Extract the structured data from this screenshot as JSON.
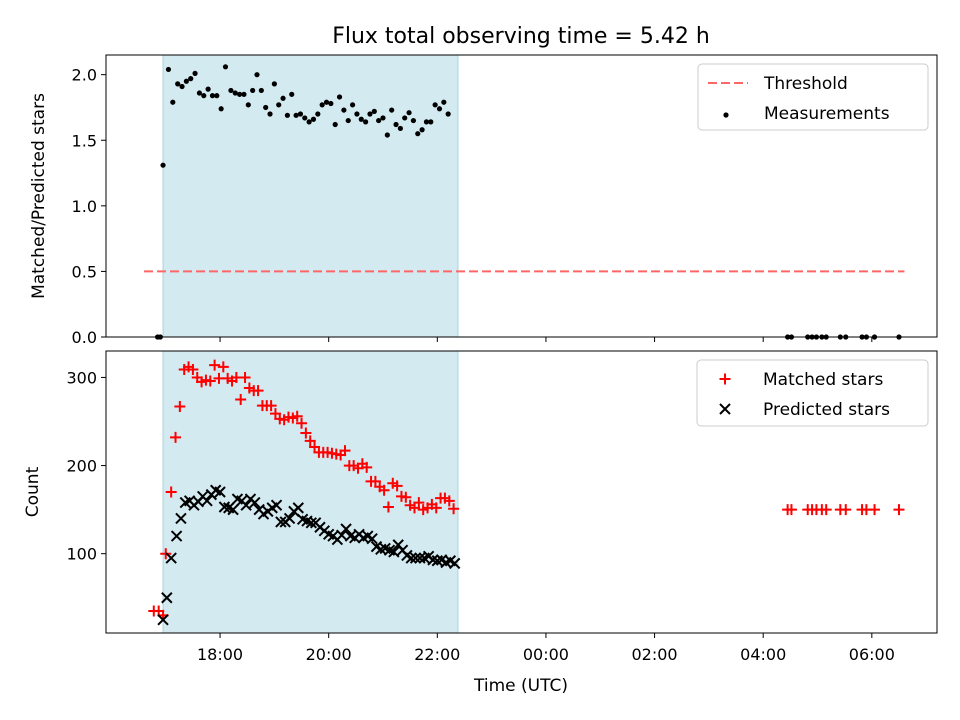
{
  "chart_data": {
    "title": "Flux total observing time = 5.42 h",
    "xlabel": "Time (UTC)",
    "x_hours_range": [
      15.9,
      31.2
    ],
    "x_ticks": [
      {
        "h": 18,
        "label": "18:00"
      },
      {
        "h": 20,
        "label": "20:00"
      },
      {
        "h": 22,
        "label": "22:00"
      },
      {
        "h": 24,
        "label": "00:00"
      },
      {
        "h": 26,
        "label": "02:00"
      },
      {
        "h": 28,
        "label": "04:00"
      },
      {
        "h": 30,
        "label": "06:00"
      }
    ],
    "observing_window": [
      16.95,
      22.38
    ],
    "window_color": "#d4eaf1",
    "panels": [
      {
        "type": "scatter",
        "ylabel": "Matched/Predicted stars",
        "ylim": [
          0,
          2.15
        ],
        "yticks": [
          0.0,
          0.5,
          1.0,
          1.5,
          2.0
        ],
        "ytick_labels": [
          "0.0",
          "0.5",
          "1.0",
          "1.5",
          "2.0"
        ],
        "threshold": {
          "name": "Threshold",
          "value": 0.5,
          "x_range": [
            16.6,
            30.6
          ],
          "color": "#ff6666"
        },
        "series": [
          {
            "name": "Measurements",
            "marker": "dot",
            "color": "#000000",
            "points": [
              [
                16.85,
                0
              ],
              [
                16.9,
                0
              ],
              [
                16.95,
                1.31
              ],
              [
                17.05,
                2.04
              ],
              [
                17.13,
                1.79
              ],
              [
                17.22,
                1.93
              ],
              [
                17.3,
                1.91
              ],
              [
                17.38,
                1.95
              ],
              [
                17.46,
                1.97
              ],
              [
                17.54,
                2.01
              ],
              [
                17.62,
                1.86
              ],
              [
                17.7,
                1.84
              ],
              [
                17.78,
                1.89
              ],
              [
                17.86,
                1.84
              ],
              [
                17.94,
                1.84
              ],
              [
                18.02,
                1.74
              ],
              [
                18.1,
                2.06
              ],
              [
                18.2,
                1.88
              ],
              [
                18.28,
                1.86
              ],
              [
                18.36,
                1.85
              ],
              [
                18.44,
                1.85
              ],
              [
                18.52,
                1.77
              ],
              [
                18.6,
                1.88
              ],
              [
                18.68,
                2.0
              ],
              [
                18.76,
                1.88
              ],
              [
                18.84,
                1.75
              ],
              [
                18.92,
                1.7
              ],
              [
                19.0,
                1.93
              ],
              [
                19.08,
                1.77
              ],
              [
                19.16,
                1.82
              ],
              [
                19.24,
                1.69
              ],
              [
                19.32,
                1.85
              ],
              [
                19.4,
                1.69
              ],
              [
                19.48,
                1.7
              ],
              [
                19.56,
                1.67
              ],
              [
                19.64,
                1.64
              ],
              [
                19.72,
                1.66
              ],
              [
                19.8,
                1.7
              ],
              [
                19.88,
                1.77
              ],
              [
                19.96,
                1.79
              ],
              [
                20.04,
                1.78
              ],
              [
                20.12,
                1.62
              ],
              [
                20.2,
                1.83
              ],
              [
                20.28,
                1.73
              ],
              [
                20.36,
                1.65
              ],
              [
                20.44,
                1.77
              ],
              [
                20.52,
                1.7
              ],
              [
                20.6,
                1.66
              ],
              [
                20.68,
                1.64
              ],
              [
                20.76,
                1.7
              ],
              [
                20.84,
                1.72
              ],
              [
                20.92,
                1.65
              ],
              [
                21.0,
                1.67
              ],
              [
                21.08,
                1.54
              ],
              [
                21.16,
                1.73
              ],
              [
                21.24,
                1.62
              ],
              [
                21.32,
                1.59
              ],
              [
                21.4,
                1.67
              ],
              [
                21.48,
                1.71
              ],
              [
                21.56,
                1.65
              ],
              [
                21.64,
                1.55
              ],
              [
                21.72,
                1.58
              ],
              [
                21.8,
                1.64
              ],
              [
                21.88,
                1.64
              ],
              [
                21.96,
                1.77
              ],
              [
                22.04,
                1.74
              ],
              [
                22.12,
                1.79
              ],
              [
                22.2,
                1.7
              ],
              [
                28.45,
                0
              ],
              [
                28.52,
                0
              ],
              [
                28.82,
                0
              ],
              [
                28.9,
                0
              ],
              [
                28.98,
                0
              ],
              [
                29.08,
                0
              ],
              [
                29.16,
                0
              ],
              [
                29.42,
                0
              ],
              [
                29.52,
                0
              ],
              [
                29.82,
                0
              ],
              [
                29.9,
                0
              ],
              [
                30.05,
                0
              ],
              [
                30.5,
                0
              ]
            ]
          }
        ],
        "legend": [
          "Threshold",
          "Measurements"
        ],
        "legend_position": "top-right"
      },
      {
        "type": "scatter",
        "ylabel": "Count",
        "ylim": [
          10,
          330
        ],
        "yticks": [
          100,
          200,
          300
        ],
        "ytick_labels": [
          "100",
          "200",
          "300"
        ],
        "series": [
          {
            "name": "Matched stars",
            "marker": "plus",
            "color": "#ff0000",
            "points": [
              [
                16.78,
                35
              ],
              [
                16.87,
                35
              ],
              [
                16.95,
                30
              ],
              [
                17.0,
                100
              ],
              [
                17.1,
                170
              ],
              [
                17.18,
                232
              ],
              [
                17.26,
                267
              ],
              [
                17.34,
                309
              ],
              [
                17.42,
                312
              ],
              [
                17.5,
                309
              ],
              [
                17.58,
                300
              ],
              [
                17.66,
                295
              ],
              [
                17.74,
                297
              ],
              [
                17.82,
                296
              ],
              [
                17.9,
                314
              ],
              [
                17.98,
                299
              ],
              [
                18.06,
                312
              ],
              [
                18.14,
                299
              ],
              [
                18.22,
                296
              ],
              [
                18.3,
                300
              ],
              [
                18.38,
                275
              ],
              [
                18.46,
                300
              ],
              [
                18.54,
                288
              ],
              [
                18.62,
                285
              ],
              [
                18.7,
                285
              ],
              [
                18.78,
                268
              ],
              [
                18.86,
                268
              ],
              [
                18.94,
                268
              ],
              [
                19.02,
                259
              ],
              [
                19.1,
                253
              ],
              [
                19.18,
                252
              ],
              [
                19.26,
                255
              ],
              [
                19.34,
                254
              ],
              [
                19.42,
                256
              ],
              [
                19.5,
                248
              ],
              [
                19.58,
                237
              ],
              [
                19.66,
                228
              ],
              [
                19.74,
                221
              ],
              [
                19.82,
                215
              ],
              [
                19.9,
                215
              ],
              [
                19.98,
                215
              ],
              [
                20.06,
                214
              ],
              [
                20.14,
                213
              ],
              [
                20.22,
                212
              ],
              [
                20.3,
                217
              ],
              [
                20.38,
                200
              ],
              [
                20.46,
                200
              ],
              [
                20.54,
                197
              ],
              [
                20.62,
                202
              ],
              [
                20.7,
                198
              ],
              [
                20.78,
                182
              ],
              [
                20.86,
                182
              ],
              [
                20.94,
                176
              ],
              [
                21.02,
                172
              ],
              [
                21.1,
                153
              ],
              [
                21.18,
                180
              ],
              [
                21.26,
                177
              ],
              [
                21.34,
                165
              ],
              [
                21.42,
                164
              ],
              [
                21.5,
                155
              ],
              [
                21.58,
                152
              ],
              [
                21.66,
                158
              ],
              [
                21.74,
                150
              ],
              [
                21.82,
                152
              ],
              [
                21.9,
                156
              ],
              [
                21.98,
                152
              ],
              [
                22.06,
                163
              ],
              [
                22.14,
                163
              ],
              [
                22.22,
                160
              ],
              [
                22.3,
                151
              ],
              [
                28.45,
                150
              ],
              [
                28.52,
                150
              ],
              [
                28.82,
                150
              ],
              [
                28.9,
                150
              ],
              [
                28.98,
                150
              ],
              [
                29.08,
                150
              ],
              [
                29.16,
                150
              ],
              [
                29.42,
                150
              ],
              [
                29.52,
                150
              ],
              [
                29.82,
                150
              ],
              [
                29.9,
                150
              ],
              [
                30.05,
                150
              ],
              [
                30.5,
                150
              ]
            ]
          },
          {
            "name": "Predicted stars",
            "marker": "x",
            "color": "#000000",
            "points": [
              [
                16.95,
                25
              ],
              [
                17.02,
                50
              ],
              [
                17.1,
                95
              ],
              [
                17.2,
                120
              ],
              [
                17.28,
                140
              ],
              [
                17.36,
                158
              ],
              [
                17.44,
                160
              ],
              [
                17.52,
                155
              ],
              [
                17.6,
                159
              ],
              [
                17.68,
                165
              ],
              [
                17.76,
                160
              ],
              [
                17.84,
                167
              ],
              [
                17.92,
                172
              ],
              [
                18.0,
                170
              ],
              [
                18.08,
                153
              ],
              [
                18.16,
                152
              ],
              [
                18.24,
                150
              ],
              [
                18.32,
                162
              ],
              [
                18.4,
                160
              ],
              [
                18.48,
                155
              ],
              [
                18.56,
                162
              ],
              [
                18.64,
                158
              ],
              [
                18.72,
                150
              ],
              [
                18.8,
                145
              ],
              [
                18.88,
                148
              ],
              [
                18.96,
                152
              ],
              [
                19.04,
                155
              ],
              [
                19.12,
                136
              ],
              [
                19.2,
                136
              ],
              [
                19.28,
                140
              ],
              [
                19.36,
                148
              ],
              [
                19.44,
                152
              ],
              [
                19.52,
                139
              ],
              [
                19.6,
                137
              ],
              [
                19.68,
                135
              ],
              [
                19.76,
                135
              ],
              [
                19.84,
                130
              ],
              [
                19.92,
                126
              ],
              [
                20.0,
                122
              ],
              [
                20.08,
                120
              ],
              [
                20.16,
                116
              ],
              [
                20.24,
                121
              ],
              [
                20.32,
                128
              ],
              [
                20.4,
                120
              ],
              [
                20.48,
                118
              ],
              [
                20.56,
                122
              ],
              [
                20.64,
                118
              ],
              [
                20.72,
                120
              ],
              [
                20.8,
                117
              ],
              [
                20.88,
                108
              ],
              [
                20.96,
                105
              ],
              [
                21.04,
                106
              ],
              [
                21.12,
                104
              ],
              [
                21.2,
                102
              ],
              [
                21.28,
                110
              ],
              [
                21.36,
                104
              ],
              [
                21.44,
                98
              ],
              [
                21.52,
                95
              ],
              [
                21.6,
                95
              ],
              [
                21.68,
                95
              ],
              [
                21.76,
                95
              ],
              [
                21.84,
                97
              ],
              [
                21.92,
                93
              ],
              [
                22.0,
                92
              ],
              [
                22.08,
                93
              ],
              [
                22.16,
                90
              ],
              [
                22.24,
                92
              ],
              [
                22.32,
                89
              ]
            ]
          }
        ],
        "legend": [
          "Matched stars",
          "Predicted stars"
        ],
        "legend_position": "top-right"
      }
    ]
  }
}
